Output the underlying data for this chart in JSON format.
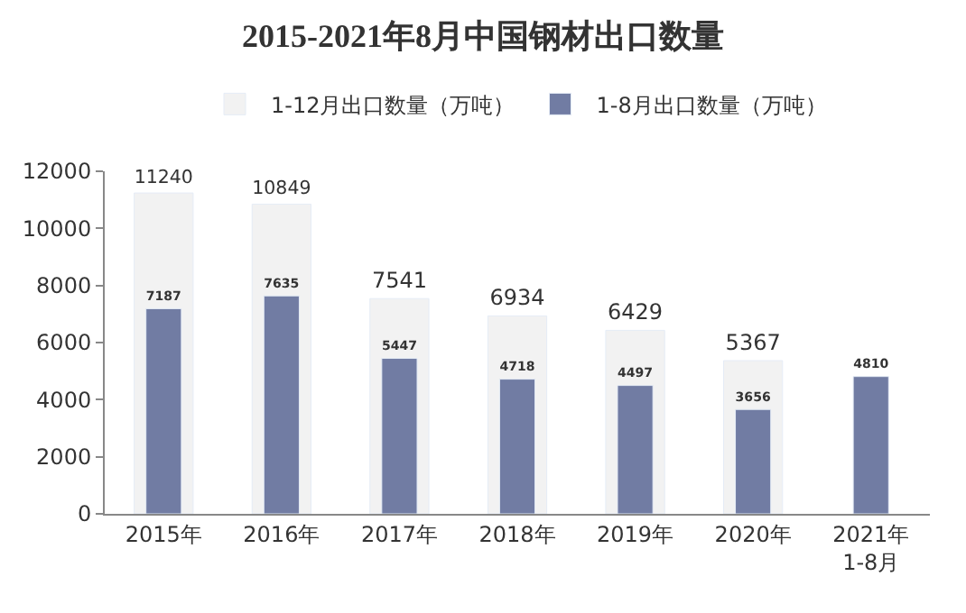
{
  "chart_data": {
    "type": "bar",
    "title": "2015-2021年8月中国钢材出口数量",
    "categories": [
      "2015年",
      "2016年",
      "2017年",
      "2018年",
      "2019年",
      "2020年",
      "2021年\n1-8月"
    ],
    "series": [
      {
        "name": "1-12月出口数量（万吨）",
        "color": "#f2f2f2",
        "values": [
          11240,
          10849,
          7541,
          6934,
          6429,
          5367,
          null
        ]
      },
      {
        "name": "1-8月出口数量（万吨）",
        "color": "#717ca3",
        "values": [
          7187,
          7635,
          5447,
          4718,
          4497,
          3656,
          4810
        ]
      }
    ],
    "ylim": [
      0,
      12000
    ],
    "yticks": [
      0,
      2000,
      4000,
      6000,
      8000,
      10000,
      12000
    ],
    "data_labels": true,
    "grid": false,
    "legend": "top"
  }
}
